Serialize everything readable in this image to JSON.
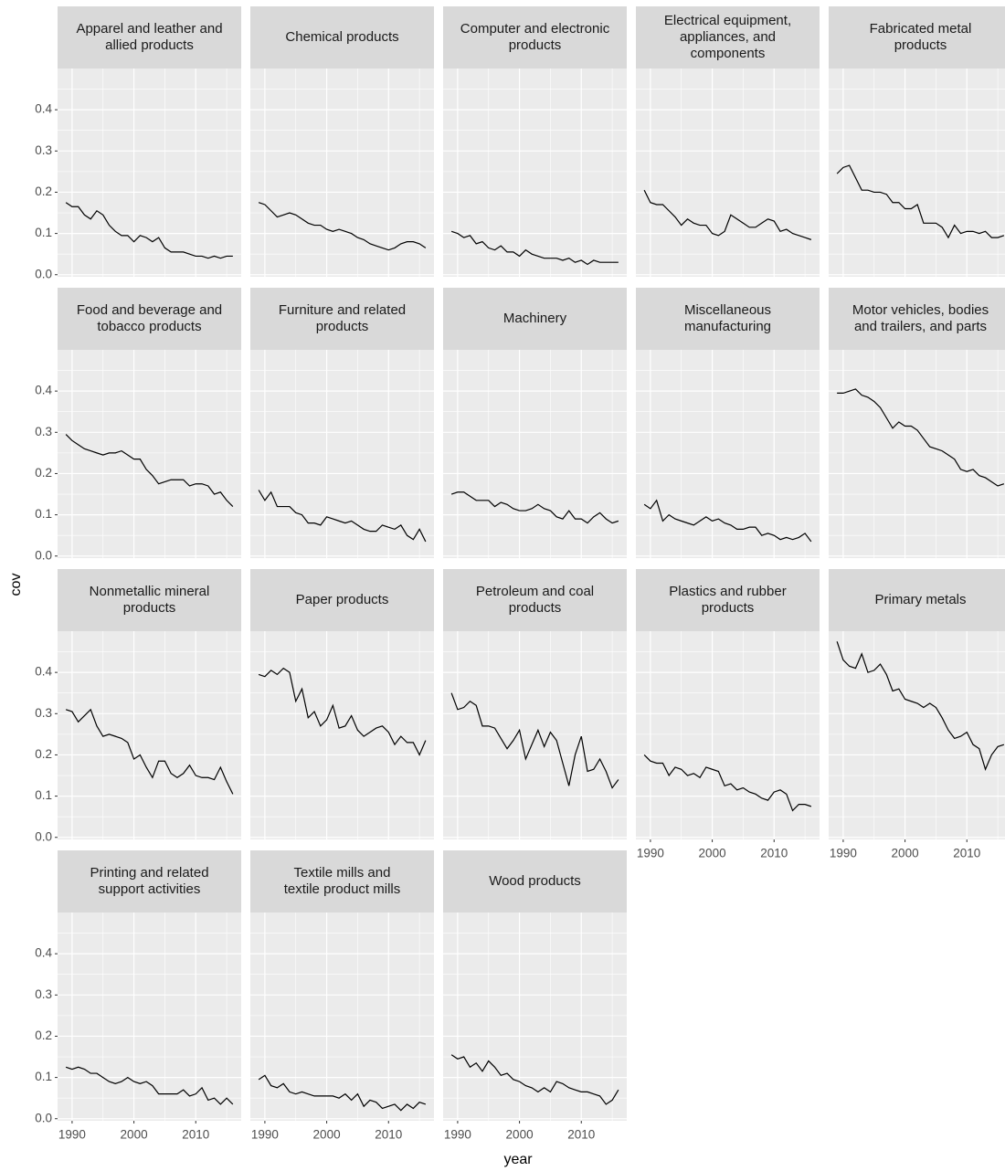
{
  "chart_data": {
    "type": "line",
    "x_label": "year",
    "y_label": "cov",
    "color": "#000000",
    "background": "#ebebeb",
    "grid": true,
    "x": [
      1989,
      1990,
      1991,
      1992,
      1993,
      1994,
      1995,
      1996,
      1997,
      1998,
      1999,
      2000,
      2001,
      2002,
      2003,
      2004,
      2005,
      2006,
      2007,
      2008,
      2009,
      2010,
      2011,
      2012,
      2013,
      2014,
      2015,
      2016
    ],
    "xlim": [
      1987.65,
      2017.35
    ],
    "xticks": [
      1990,
      2000,
      2010
    ],
    "ylim": [
      -0.005,
      0.5
    ],
    "yticks": [
      {
        "value": 0,
        "label": "0.0"
      },
      0.1,
      0.2,
      0.3,
      0.4
    ],
    "series": [
      {
        "name": "Apparel and leather and\nallied products",
        "values": [
          0.175,
          0.165,
          0.165,
          0.145,
          0.135,
          0.155,
          0.145,
          0.12,
          0.105,
          0.095,
          0.095,
          0.08,
          0.095,
          0.09,
          0.08,
          0.09,
          0.065,
          0.055,
          0.055,
          0.055,
          0.05,
          0.045,
          0.045,
          0.04,
          0.045,
          0.04,
          0.045,
          0.045
        ]
      },
      {
        "name": "Chemical products",
        "values": [
          0.175,
          0.17,
          0.155,
          0.14,
          0.145,
          0.15,
          0.145,
          0.135,
          0.125,
          0.12,
          0.12,
          0.11,
          0.105,
          0.11,
          0.105,
          0.1,
          0.09,
          0.085,
          0.075,
          0.07,
          0.065,
          0.06,
          0.065,
          0.075,
          0.08,
          0.08,
          0.075,
          0.065
        ]
      },
      {
        "name": "Computer and electronic\nproducts",
        "values": [
          0.105,
          0.1,
          0.09,
          0.095,
          0.075,
          0.08,
          0.065,
          0.06,
          0.07,
          0.055,
          0.055,
          0.045,
          0.06,
          0.05,
          0.045,
          0.04,
          0.04,
          0.04,
          0.035,
          0.04,
          0.03,
          0.035,
          0.025,
          0.035,
          0.03,
          0.03,
          0.03,
          0.03
        ]
      },
      {
        "name": "Electrical equipment,\nappliances, and\ncomponents",
        "values": [
          0.205,
          0.175,
          0.17,
          0.17,
          0.155,
          0.14,
          0.12,
          0.135,
          0.125,
          0.12,
          0.12,
          0.1,
          0.095,
          0.105,
          0.145,
          0.135,
          0.125,
          0.115,
          0.115,
          0.125,
          0.135,
          0.13,
          0.105,
          0.11,
          0.1,
          0.095,
          0.09,
          0.085
        ]
      },
      {
        "name": "Fabricated metal\nproducts",
        "values": [
          0.245,
          0.26,
          0.265,
          0.235,
          0.205,
          0.205,
          0.2,
          0.2,
          0.195,
          0.175,
          0.175,
          0.16,
          0.16,
          0.17,
          0.125,
          0.125,
          0.125,
          0.115,
          0.09,
          0.12,
          0.1,
          0.105,
          0.105,
          0.1,
          0.105,
          0.09,
          0.09,
          0.095
        ]
      },
      {
        "name": "Food and beverage and\ntobacco products",
        "values": [
          0.295,
          0.28,
          0.27,
          0.26,
          0.255,
          0.25,
          0.245,
          0.25,
          0.25,
          0.255,
          0.245,
          0.235,
          0.235,
          0.21,
          0.195,
          0.175,
          0.18,
          0.185,
          0.185,
          0.185,
          0.17,
          0.175,
          0.175,
          0.17,
          0.15,
          0.155,
          0.135,
          0.12
        ]
      },
      {
        "name": "Furniture and related\nproducts",
        "values": [
          0.16,
          0.135,
          0.155,
          0.12,
          0.12,
          0.12,
          0.105,
          0.1,
          0.08,
          0.08,
          0.075,
          0.095,
          0.09,
          0.085,
          0.08,
          0.085,
          0.075,
          0.065,
          0.06,
          0.06,
          0.075,
          0.07,
          0.065,
          0.075,
          0.05,
          0.04,
          0.065,
          0.035
        ]
      },
      {
        "name": "Machinery",
        "values": [
          0.15,
          0.155,
          0.155,
          0.145,
          0.135,
          0.135,
          0.135,
          0.12,
          0.13,
          0.125,
          0.115,
          0.11,
          0.11,
          0.115,
          0.125,
          0.115,
          0.11,
          0.095,
          0.09,
          0.11,
          0.09,
          0.09,
          0.08,
          0.095,
          0.105,
          0.09,
          0.08,
          0.085
        ]
      },
      {
        "name": "Miscellaneous\nmanufacturing",
        "values": [
          0.125,
          0.115,
          0.135,
          0.085,
          0.1,
          0.09,
          0.085,
          0.08,
          0.075,
          0.085,
          0.095,
          0.085,
          0.09,
          0.08,
          0.075,
          0.065,
          0.065,
          0.07,
          0.07,
          0.05,
          0.055,
          0.05,
          0.04,
          0.045,
          0.04,
          0.045,
          0.055,
          0.035
        ]
      },
      {
        "name": "Motor vehicles, bodies\nand trailers, and parts",
        "values": [
          0.395,
          0.395,
          0.4,
          0.405,
          0.39,
          0.385,
          0.375,
          0.36,
          0.335,
          0.31,
          0.325,
          0.315,
          0.315,
          0.305,
          0.285,
          0.265,
          0.26,
          0.255,
          0.245,
          0.235,
          0.21,
          0.205,
          0.21,
          0.195,
          0.19,
          0.18,
          0.17,
          0.175
        ]
      },
      {
        "name": "Nonmetallic mineral\nproducts",
        "values": [
          0.31,
          0.305,
          0.28,
          0.295,
          0.31,
          0.27,
          0.245,
          0.25,
          0.245,
          0.24,
          0.23,
          0.19,
          0.2,
          0.17,
          0.145,
          0.185,
          0.185,
          0.155,
          0.145,
          0.155,
          0.175,
          0.15,
          0.145,
          0.145,
          0.14,
          0.17,
          0.135,
          0.105
        ]
      },
      {
        "name": "Paper products",
        "values": [
          0.395,
          0.39,
          0.405,
          0.395,
          0.41,
          0.4,
          0.33,
          0.36,
          0.29,
          0.305,
          0.27,
          0.285,
          0.32,
          0.265,
          0.27,
          0.295,
          0.26,
          0.245,
          0.255,
          0.265,
          0.27,
          0.255,
          0.225,
          0.245,
          0.23,
          0.23,
          0.2,
          0.235
        ]
      },
      {
        "name": "Petroleum and coal\nproducts",
        "values": [
          0.35,
          0.31,
          0.315,
          0.33,
          0.32,
          0.27,
          0.27,
          0.265,
          0.24,
          0.215,
          0.235,
          0.26,
          0.19,
          0.225,
          0.26,
          0.22,
          0.255,
          0.235,
          0.18,
          0.125,
          0.2,
          0.245,
          0.16,
          0.165,
          0.19,
          0.16,
          0.12,
          0.14
        ]
      },
      {
        "name": "Plastics and rubber\nproducts",
        "values": [
          0.2,
          0.185,
          0.18,
          0.18,
          0.15,
          0.17,
          0.165,
          0.15,
          0.155,
          0.145,
          0.17,
          0.165,
          0.16,
          0.125,
          0.13,
          0.115,
          0.12,
          0.11,
          0.105,
          0.095,
          0.09,
          0.11,
          0.115,
          0.105,
          0.065,
          0.08,
          0.08,
          0.075
        ]
      },
      {
        "name": "Primary metals",
        "values": [
          0.475,
          0.43,
          0.415,
          0.41,
          0.445,
          0.4,
          0.405,
          0.42,
          0.395,
          0.355,
          0.36,
          0.335,
          0.33,
          0.325,
          0.315,
          0.325,
          0.315,
          0.29,
          0.26,
          0.24,
          0.245,
          0.255,
          0.225,
          0.215,
          0.165,
          0.2,
          0.22,
          0.225
        ]
      },
      {
        "name": "Printing and related\nsupport activities",
        "values": [
          0.125,
          0.12,
          0.125,
          0.12,
          0.11,
          0.11,
          0.1,
          0.09,
          0.085,
          0.09,
          0.1,
          0.09,
          0.085,
          0.09,
          0.08,
          0.06,
          0.06,
          0.06,
          0.06,
          0.07,
          0.055,
          0.06,
          0.075,
          0.045,
          0.05,
          0.035,
          0.05,
          0.035
        ]
      },
      {
        "name": "Textile mills and\ntextile product mills",
        "values": [
          0.095,
          0.105,
          0.08,
          0.075,
          0.085,
          0.065,
          0.06,
          0.065,
          0.06,
          0.055,
          0.055,
          0.055,
          0.055,
          0.05,
          0.06,
          0.045,
          0.06,
          0.03,
          0.045,
          0.04,
          0.025,
          0.03,
          0.035,
          0.02,
          0.035,
          0.025,
          0.04,
          0.035
        ]
      },
      {
        "name": "Wood products",
        "values": [
          0.155,
          0.145,
          0.15,
          0.125,
          0.135,
          0.115,
          0.14,
          0.125,
          0.105,
          0.11,
          0.095,
          0.09,
          0.08,
          0.075,
          0.065,
          0.075,
          0.065,
          0.09,
          0.085,
          0.075,
          0.07,
          0.065,
          0.065,
          0.06,
          0.055,
          0.035,
          0.045,
          0.07
        ]
      }
    ]
  }
}
